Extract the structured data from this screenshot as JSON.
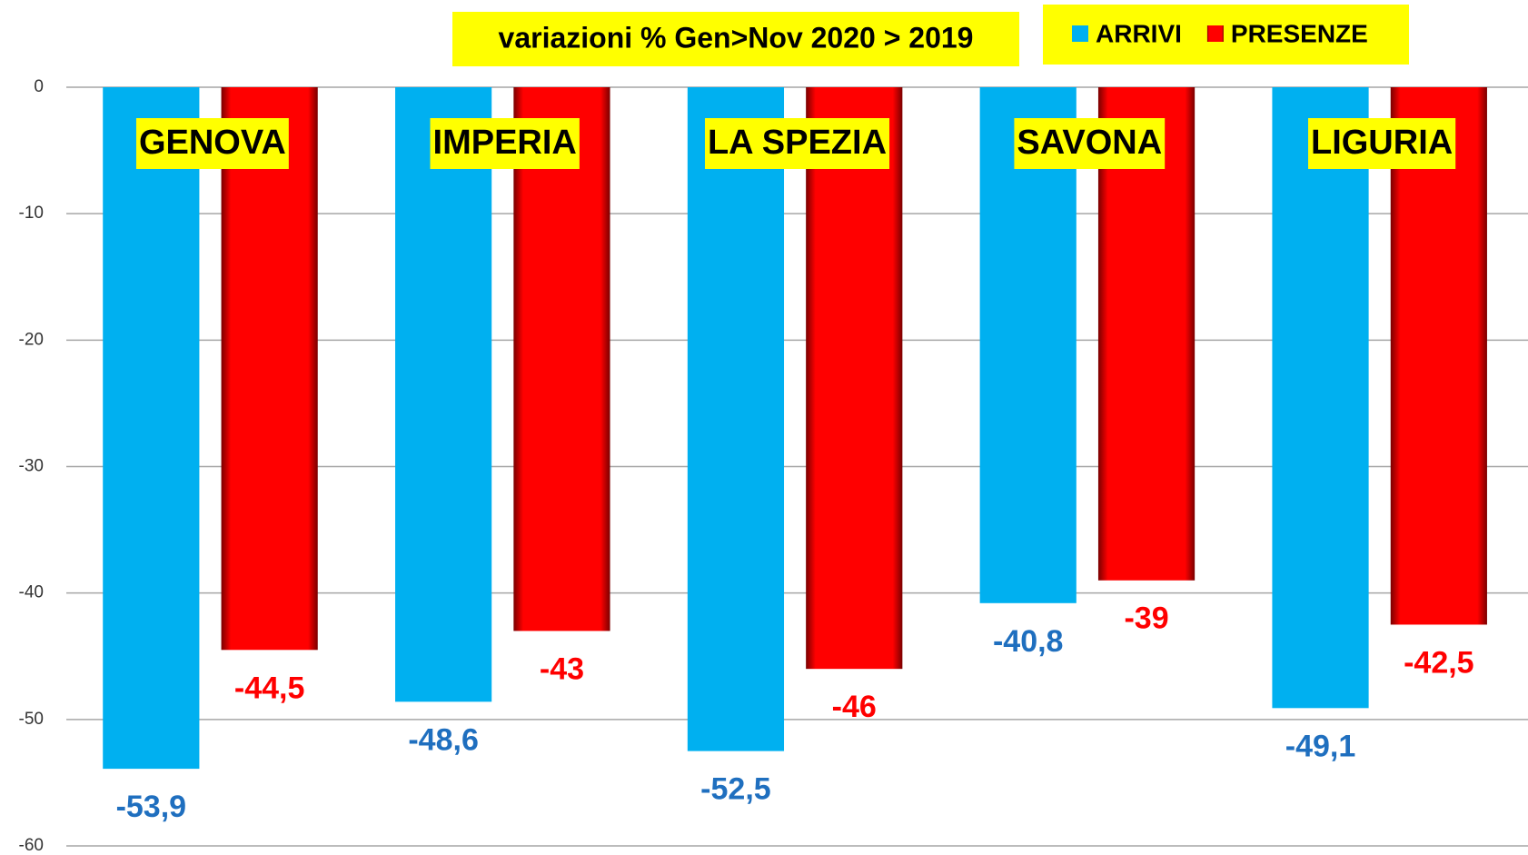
{
  "chart_data": {
    "type": "bar",
    "title": "variazioni % Gen>Nov 2020 > 2019",
    "categories": [
      "GENOVA",
      "IMPERIA",
      "LA SPEZIA",
      "SAVONA",
      "LIGURIA"
    ],
    "series": [
      {
        "name": "ARRIVI",
        "color": "#00b0f0",
        "label_color": "#1f6fbf",
        "values": [
          -53.9,
          -48.6,
          -52.5,
          -40.8,
          -49.1
        ],
        "value_labels": [
          "-53,9",
          "-48,6",
          "-52,5",
          "-40,8",
          "-49,1"
        ]
      },
      {
        "name": "PRESENZE",
        "color": "#ff0000",
        "label_color": "#ff0000",
        "values": [
          -44.5,
          -43,
          -46,
          -39,
          -42.5
        ],
        "value_labels": [
          "-44,5",
          "-43",
          "-46",
          "-39",
          "-42,5"
        ]
      }
    ],
    "ylim": [
      -60,
      0
    ],
    "yticks": [
      0,
      -10,
      -20,
      -30,
      -40,
      -50,
      -60
    ],
    "grid": true
  }
}
